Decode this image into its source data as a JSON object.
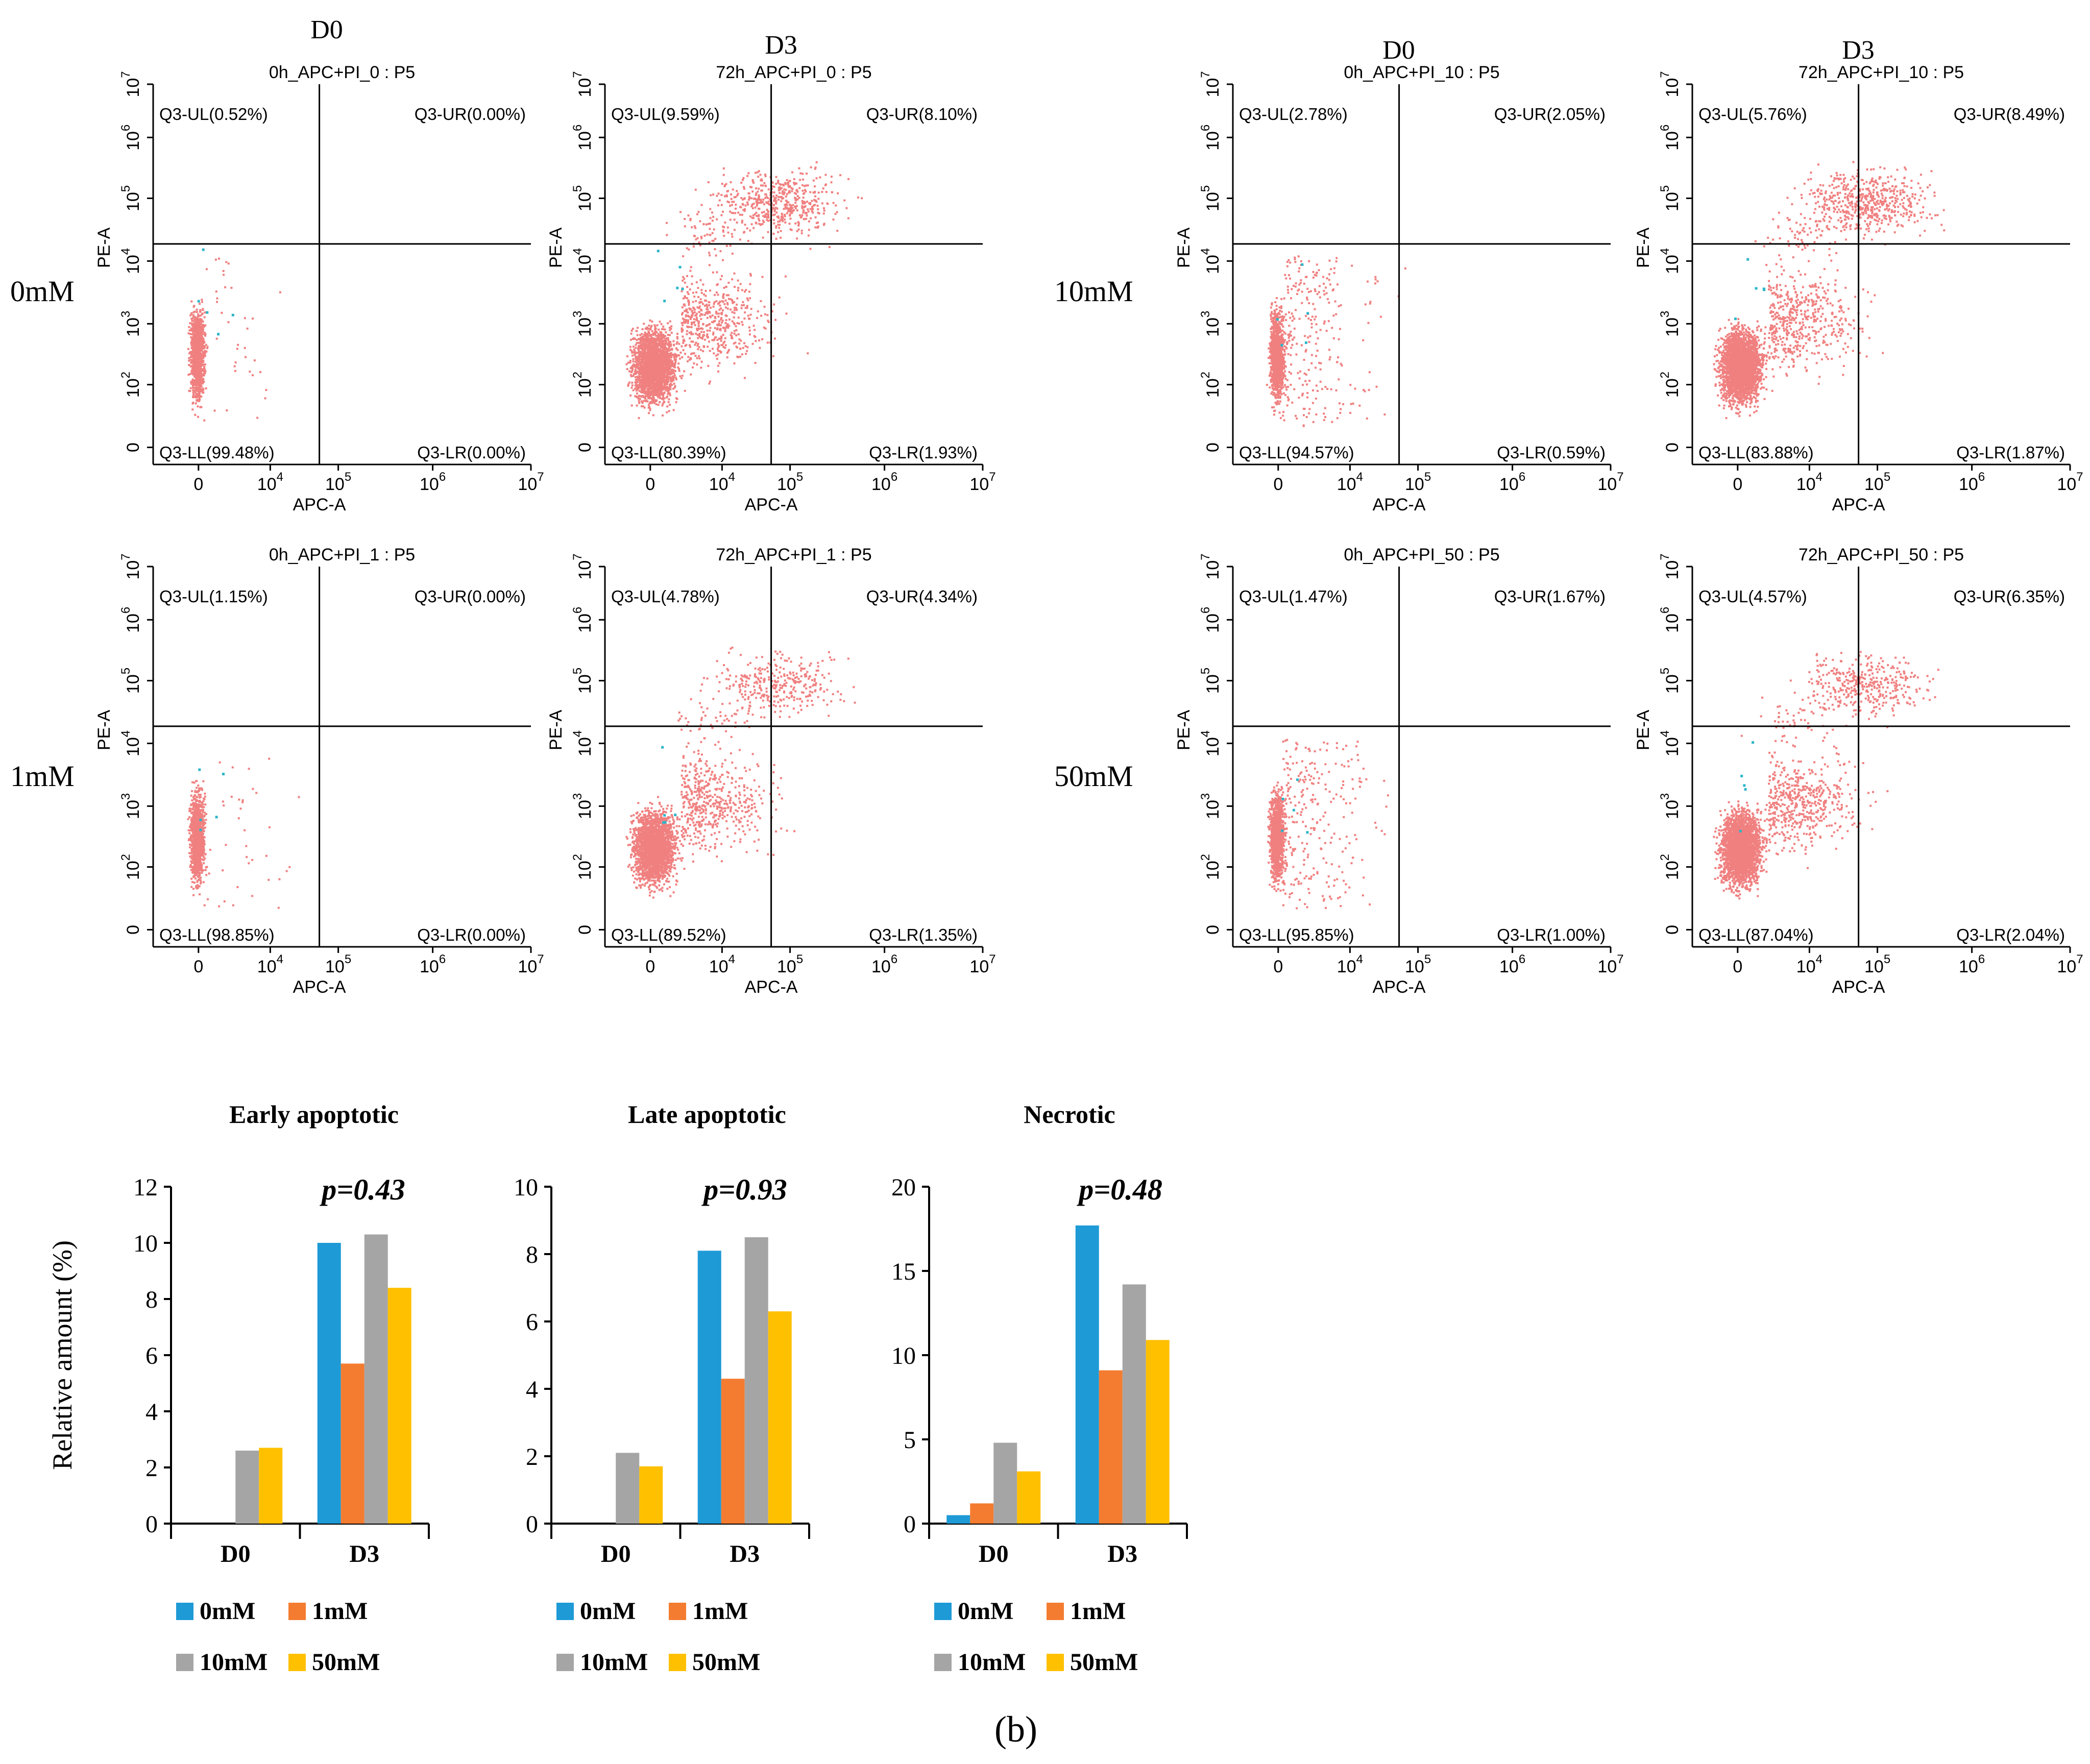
{
  "figure_label": "(b)",
  "row_labels": [
    "0mM",
    "1mM",
    "10mM",
    "50mM"
  ],
  "column_headers": [
    "D0",
    "D3",
    "D0",
    "D3"
  ],
  "colors": {
    "dots": "#f08080",
    "debris": "#2cb5c8",
    "axis": "#000000"
  },
  "chart_data": [
    {
      "type": "scatter",
      "title": "0h_APC+PI_0 : P5",
      "xlabel": "APC-A",
      "ylabel": "PE-A",
      "x_ticks": [
        "0",
        "10^4",
        "10^5",
        "10^6",
        "10^7"
      ],
      "y_ticks": [
        "0",
        "10^2",
        "10^3",
        "10^4",
        "10^5",
        "10^6",
        "10^7"
      ],
      "quadrants": {
        "UL": "Q3-UL(0.52%)",
        "UR": "Q3-UR(0.00%)",
        "LL": "Q3-LL(99.48%)",
        "LR": "Q3-LR(0.00%)"
      }
    },
    {
      "type": "scatter",
      "title": "72h_APC+PI_0 : P5",
      "xlabel": "APC-A",
      "ylabel": "PE-A",
      "x_ticks": [
        "0",
        "10^4",
        "10^5",
        "10^6",
        "10^7"
      ],
      "y_ticks": [
        "0",
        "10^2",
        "10^3",
        "10^4",
        "10^5",
        "10^6",
        "10^7"
      ],
      "quadrants": {
        "UL": "Q3-UL(9.59%)",
        "UR": "Q3-UR(8.10%)",
        "LL": "Q3-LL(80.39%)",
        "LR": "Q3-LR(1.93%)"
      }
    },
    {
      "type": "scatter",
      "title": "0h_APC+PI_10 : P5",
      "xlabel": "APC-A",
      "ylabel": "PE-A",
      "x_ticks": [
        "0",
        "10^4",
        "10^5",
        "10^6",
        "10^7"
      ],
      "y_ticks": [
        "0",
        "10^2",
        "10^3",
        "10^4",
        "10^5",
        "10^6",
        "10^7"
      ],
      "quadrants": {
        "UL": "Q3-UL(2.78%)",
        "UR": "Q3-UR(2.05%)",
        "LL": "Q3-LL(94.57%)",
        "LR": "Q3-LR(0.59%)"
      }
    },
    {
      "type": "scatter",
      "title": "72h_APC+PI_10 : P5",
      "xlabel": "APC-A",
      "ylabel": "PE-A",
      "x_ticks": [
        "0",
        "10^4",
        "10^5",
        "10^6",
        "10^7"
      ],
      "y_ticks": [
        "0",
        "10^2",
        "10^3",
        "10^4",
        "10^5",
        "10^6",
        "10^7"
      ],
      "quadrants": {
        "UL": "Q3-UL(5.76%)",
        "UR": "Q3-UR(8.49%)",
        "LL": "Q3-LL(83.88%)",
        "LR": "Q3-LR(1.87%)"
      }
    },
    {
      "type": "scatter",
      "title": "0h_APC+PI_1 : P5",
      "xlabel": "APC-A",
      "ylabel": "PE-A",
      "x_ticks": [
        "0",
        "10^4",
        "10^5",
        "10^6",
        "10^7"
      ],
      "y_ticks": [
        "0",
        "10^2",
        "10^3",
        "10^4",
        "10^5",
        "10^6",
        "10^7"
      ],
      "quadrants": {
        "UL": "Q3-UL(1.15%)",
        "UR": "Q3-UR(0.00%)",
        "LL": "Q3-LL(98.85%)",
        "LR": "Q3-LR(0.00%)"
      }
    },
    {
      "type": "scatter",
      "title": "72h_APC+PI_1 : P5",
      "xlabel": "APC-A",
      "ylabel": "PE-A",
      "x_ticks": [
        "0",
        "10^4",
        "10^5",
        "10^6",
        "10^7"
      ],
      "y_ticks": [
        "0",
        "10^2",
        "10^3",
        "10^4",
        "10^5",
        "10^6",
        "10^7"
      ],
      "quadrants": {
        "UL": "Q3-UL(4.78%)",
        "UR": "Q3-UR(4.34%)",
        "LL": "Q3-LL(89.52%)",
        "LR": "Q3-LR(1.35%)"
      }
    },
    {
      "type": "scatter",
      "title": "0h_APC+PI_50 : P5",
      "xlabel": "APC-A",
      "ylabel": "PE-A",
      "x_ticks": [
        "0",
        "10^4",
        "10^5",
        "10^6",
        "10^7"
      ],
      "y_ticks": [
        "0",
        "10^2",
        "10^3",
        "10^4",
        "10^5",
        "10^6",
        "10^7"
      ],
      "quadrants": {
        "UL": "Q3-UL(1.47%)",
        "UR": "Q3-UR(1.67%)",
        "LL": "Q3-LL(95.85%)",
        "LR": "Q3-LR(1.00%)"
      }
    },
    {
      "type": "scatter",
      "title": "72h_APC+PI_50 : P5",
      "xlabel": "APC-A",
      "ylabel": "PE-A",
      "x_ticks": [
        "0",
        "10^4",
        "10^5",
        "10^6",
        "10^7"
      ],
      "y_ticks": [
        "0",
        "10^2",
        "10^3",
        "10^4",
        "10^5",
        "10^6",
        "10^7"
      ],
      "quadrants": {
        "UL": "Q3-UL(4.57%)",
        "UR": "Q3-UR(6.35%)",
        "LL": "Q3-LL(87.04%)",
        "LR": "Q3-LR(2.04%)"
      }
    },
    {
      "type": "bar",
      "title": "Early apoptotic",
      "pvalue": "p=0.43",
      "ylabel": "Relative amount (%)",
      "categories": [
        "D0",
        "D3"
      ],
      "ylim": [
        0,
        12
      ],
      "y_ticks": [
        "0",
        "2",
        "4",
        "6",
        "8",
        "10",
        "12"
      ],
      "series": [
        {
          "name": "0mM",
          "color": "#1e9ad6",
          "values": [
            0,
            10.0
          ]
        },
        {
          "name": "1mM",
          "color": "#f47c30",
          "values": [
            0,
            5.7
          ]
        },
        {
          "name": "10mM",
          "color": "#a5a5a5",
          "values": [
            2.6,
            10.3
          ]
        },
        {
          "name": "50mM",
          "color": "#ffc000",
          "values": [
            2.7,
            8.4
          ]
        }
      ]
    },
    {
      "type": "bar",
      "title": "Late apoptotic",
      "pvalue": "p=0.93",
      "categories": [
        "D0",
        "D3"
      ],
      "ylim": [
        0,
        10
      ],
      "y_ticks": [
        "0",
        "2",
        "4",
        "6",
        "8",
        "10"
      ],
      "series": [
        {
          "name": "0mM",
          "color": "#1e9ad6",
          "values": [
            0,
            8.1
          ]
        },
        {
          "name": "1mM",
          "color": "#f47c30",
          "values": [
            0,
            4.3
          ]
        },
        {
          "name": "10mM",
          "color": "#a5a5a5",
          "values": [
            2.1,
            8.5
          ]
        },
        {
          "name": "50mM",
          "color": "#ffc000",
          "values": [
            1.7,
            6.3
          ]
        }
      ]
    },
    {
      "type": "bar",
      "title": "Necrotic",
      "pvalue": "p=0.48",
      "categories": [
        "D0",
        "D3"
      ],
      "ylim": [
        0,
        20
      ],
      "y_ticks": [
        "0",
        "5",
        "10",
        "15",
        "20"
      ],
      "series": [
        {
          "name": "0mM",
          "color": "#1e9ad6",
          "values": [
            0.5,
            17.7
          ]
        },
        {
          "name": "1mM",
          "color": "#f47c30",
          "values": [
            1.2,
            9.1
          ]
        },
        {
          "name": "10mM",
          "color": "#a5a5a5",
          "values": [
            4.8,
            14.2
          ]
        },
        {
          "name": "50mM",
          "color": "#ffc000",
          "values": [
            3.1,
            10.9
          ]
        }
      ]
    }
  ]
}
